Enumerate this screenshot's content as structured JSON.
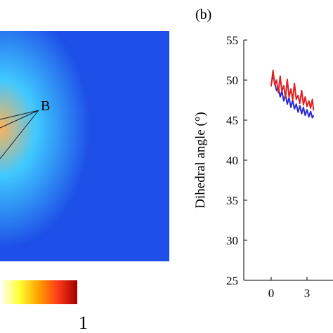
{
  "panel_a": {
    "point_label": "B",
    "colorbar": {
      "max_label": "1",
      "colors": [
        "#ffffff",
        "#ffff33",
        "#ffa000",
        "#ff3a1a",
        "#a00000"
      ]
    },
    "map_colors": {
      "background": "#1e4fe8",
      "mid": "#3fc9ff",
      "hot": "#ffb35a"
    }
  },
  "panel_b": {
    "label": "(b)",
    "chart_data": {
      "type": "line",
      "title": "",
      "xlabel": "",
      "ylabel": "Dihedral angle (°)",
      "xlim": [
        -0.6,
        4.1
      ],
      "ylim": [
        25,
        55
      ],
      "xticks": [
        "0",
        "3"
      ],
      "yticks": [
        "25",
        "30",
        "35",
        "40",
        "45",
        "50",
        "55"
      ],
      "grid": false,
      "series": [
        {
          "color": "#2a2ad0",
          "x": [
            0,
            0.15,
            0.3,
            0.45,
            0.6,
            0.75,
            0.9,
            1.05,
            1.2,
            1.35,
            1.5,
            1.65,
            1.8,
            1.95,
            2.1,
            2.25,
            2.4,
            2.55,
            2.7,
            2.85,
            3.0,
            3.15,
            3.3,
            3.45,
            3.55
          ],
          "values": [
            49.5,
            50.6,
            49.6,
            48.7,
            49.1,
            47.9,
            48.6,
            47.4,
            48.2,
            47.0,
            47.8,
            46.6,
            47.5,
            46.4,
            47.0,
            46.0,
            46.8,
            45.8,
            46.6,
            45.6,
            46.3,
            45.4,
            46.1,
            45.3,
            45.6
          ]
        },
        {
          "color": "#e02020",
          "x": [
            0,
            0.15,
            0.3,
            0.45,
            0.6,
            0.75,
            0.9,
            1.05,
            1.2,
            1.35,
            1.5,
            1.65,
            1.8,
            1.95,
            2.1,
            2.25,
            2.4,
            2.55,
            2.7,
            2.85,
            3.0,
            3.15,
            3.3,
            3.45,
            3.55
          ],
          "values": [
            49.2,
            51.2,
            49.4,
            50.0,
            48.4,
            50.5,
            48.6,
            49.3,
            47.8,
            50.1,
            47.9,
            48.9,
            47.5,
            49.6,
            47.6,
            48.1,
            47.1,
            48.7,
            46.9,
            47.9,
            46.7,
            47.4,
            46.5,
            47.6,
            46.2
          ]
        }
      ]
    }
  }
}
